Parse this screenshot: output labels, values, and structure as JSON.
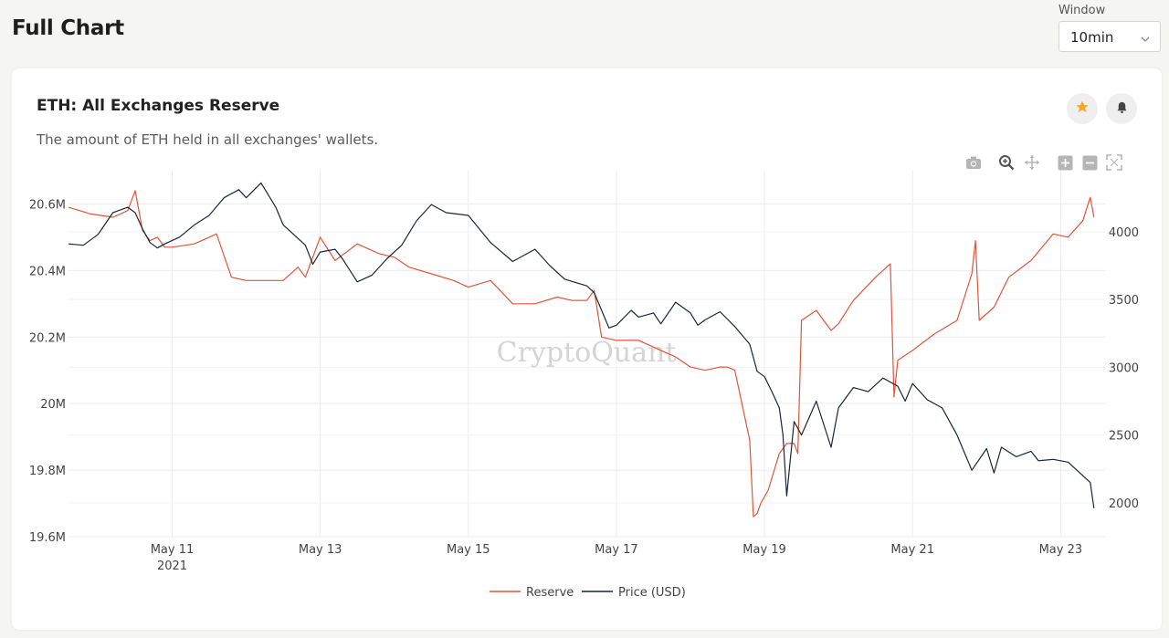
{
  "page": {
    "title": "Full Chart"
  },
  "window": {
    "label": "Window",
    "value": "10min"
  },
  "card": {
    "title": "ETH: All Exchanges Reserve",
    "subtitle": "The amount of ETH held in all exchanges' wallets."
  },
  "toolbar": [
    "camera-icon",
    "zoom-icon",
    "pan-icon",
    "zoom-in-icon",
    "zoom-out-icon",
    "autoscale-icon"
  ],
  "watermark": "CryptoQuant",
  "colors": {
    "reserve": "#e0553a",
    "price": "#1c2536",
    "star": "#f5a623"
  },
  "chart_data": {
    "type": "line",
    "x_ticks": [
      "May 11",
      "May 13",
      "May 15",
      "May 17",
      "May 19",
      "May 21",
      "May 23"
    ],
    "x_tick_sub": "2021",
    "x_tick_days": [
      11,
      13,
      15,
      17,
      19,
      21,
      23
    ],
    "xlim_days": [
      9.6,
      23.6
    ],
    "y_left": {
      "ticks": [
        "20.6M",
        "20.4M",
        "20.2M",
        "20M",
        "19.8M",
        "19.6M"
      ],
      "tick_values": [
        20.6,
        20.4,
        20.2,
        20.0,
        19.8,
        19.6
      ],
      "range": [
        19.6,
        20.7
      ]
    },
    "y_right": {
      "ticks": [
        "4000",
        "3500",
        "3000",
        "2500",
        "2000"
      ],
      "tick_values": [
        4000,
        3500,
        3000,
        2500,
        2000
      ],
      "range": [
        1750,
        4450
      ]
    },
    "series": [
      {
        "name": "Reserve",
        "axis": "left",
        "x": [
          9.6,
          9.9,
          10.2,
          10.4,
          10.5,
          10.6,
          10.7,
          10.8,
          10.9,
          11.0,
          11.3,
          11.6,
          11.8,
          12.0,
          12.3,
          12.5,
          12.7,
          12.8,
          13.0,
          13.2,
          13.5,
          13.8,
          14.0,
          14.2,
          14.5,
          14.8,
          15.0,
          15.3,
          15.6,
          15.9,
          16.2,
          16.4,
          16.6,
          16.7,
          16.8,
          17.0,
          17.3,
          17.6,
          17.8,
          18.0,
          18.2,
          18.4,
          18.5,
          18.6,
          18.8,
          18.85,
          18.9,
          18.95,
          19.05,
          19.2,
          19.3,
          19.4,
          19.45,
          19.5,
          19.7,
          19.9,
          20.0,
          20.2,
          20.5,
          20.7,
          20.75,
          20.8,
          21.0,
          21.3,
          21.6,
          21.8,
          21.85,
          21.9,
          22.1,
          22.3,
          22.6,
          22.9,
          23.1,
          23.3,
          23.4,
          23.45
        ],
        "values": [
          20.59,
          20.57,
          20.56,
          20.58,
          20.64,
          20.52,
          20.49,
          20.5,
          20.47,
          20.47,
          20.48,
          20.51,
          20.38,
          20.37,
          20.37,
          20.37,
          20.41,
          20.38,
          20.5,
          20.43,
          20.48,
          20.45,
          20.44,
          20.41,
          20.39,
          20.37,
          20.35,
          20.37,
          20.3,
          20.3,
          20.32,
          20.31,
          20.31,
          20.34,
          20.2,
          20.19,
          20.19,
          20.16,
          20.14,
          20.11,
          20.1,
          20.11,
          20.11,
          20.1,
          19.89,
          19.66,
          19.67,
          19.7,
          19.74,
          19.85,
          19.88,
          19.88,
          19.85,
          20.25,
          20.28,
          20.22,
          20.24,
          20.31,
          20.38,
          20.42,
          20.02,
          20.13,
          20.16,
          20.21,
          20.25,
          20.39,
          20.49,
          20.25,
          20.29,
          20.38,
          20.43,
          20.51,
          20.5,
          20.55,
          20.62,
          20.56
        ]
      },
      {
        "name": "Price (USD)",
        "axis": "right",
        "x": [
          9.6,
          9.8,
          10.0,
          10.2,
          10.4,
          10.5,
          10.6,
          10.7,
          10.8,
          10.9,
          11.1,
          11.3,
          11.5,
          11.7,
          11.9,
          12.0,
          12.2,
          12.4,
          12.5,
          12.6,
          12.8,
          12.9,
          13.0,
          13.2,
          13.3,
          13.5,
          13.7,
          13.9,
          14.1,
          14.3,
          14.5,
          14.7,
          15.0,
          15.3,
          15.6,
          15.9,
          16.1,
          16.3,
          16.6,
          16.7,
          16.8,
          16.9,
          17.0,
          17.2,
          17.3,
          17.5,
          17.6,
          17.8,
          18.0,
          18.1,
          18.2,
          18.4,
          18.6,
          18.8,
          18.9,
          19.0,
          19.1,
          19.2,
          19.25,
          19.3,
          19.4,
          19.5,
          19.7,
          19.9,
          20.0,
          20.2,
          20.4,
          20.6,
          20.8,
          20.9,
          21.0,
          21.2,
          21.4,
          21.6,
          21.8,
          22.0,
          22.1,
          22.2,
          22.4,
          22.6,
          22.7,
          22.9,
          23.1,
          23.3,
          23.4,
          23.45
        ],
        "values": [
          3910,
          3900,
          3980,
          4140,
          4180,
          4140,
          4020,
          3920,
          3880,
          3910,
          3960,
          4050,
          4120,
          4250,
          4310,
          4250,
          4360,
          4180,
          4050,
          4000,
          3900,
          3760,
          3850,
          3870,
          3800,
          3630,
          3680,
          3800,
          3900,
          4080,
          4200,
          4140,
          4120,
          3920,
          3780,
          3870,
          3750,
          3650,
          3600,
          3550,
          3420,
          3290,
          3310,
          3420,
          3370,
          3400,
          3320,
          3480,
          3400,
          3310,
          3350,
          3410,
          3300,
          3170,
          2970,
          2930,
          2820,
          2700,
          2500,
          2050,
          2600,
          2500,
          2750,
          2410,
          2700,
          2850,
          2820,
          2920,
          2860,
          2750,
          2880,
          2760,
          2700,
          2500,
          2240,
          2400,
          2220,
          2410,
          2340,
          2380,
          2310,
          2320,
          2300,
          2200,
          2150,
          1960
        ]
      }
    ]
  }
}
